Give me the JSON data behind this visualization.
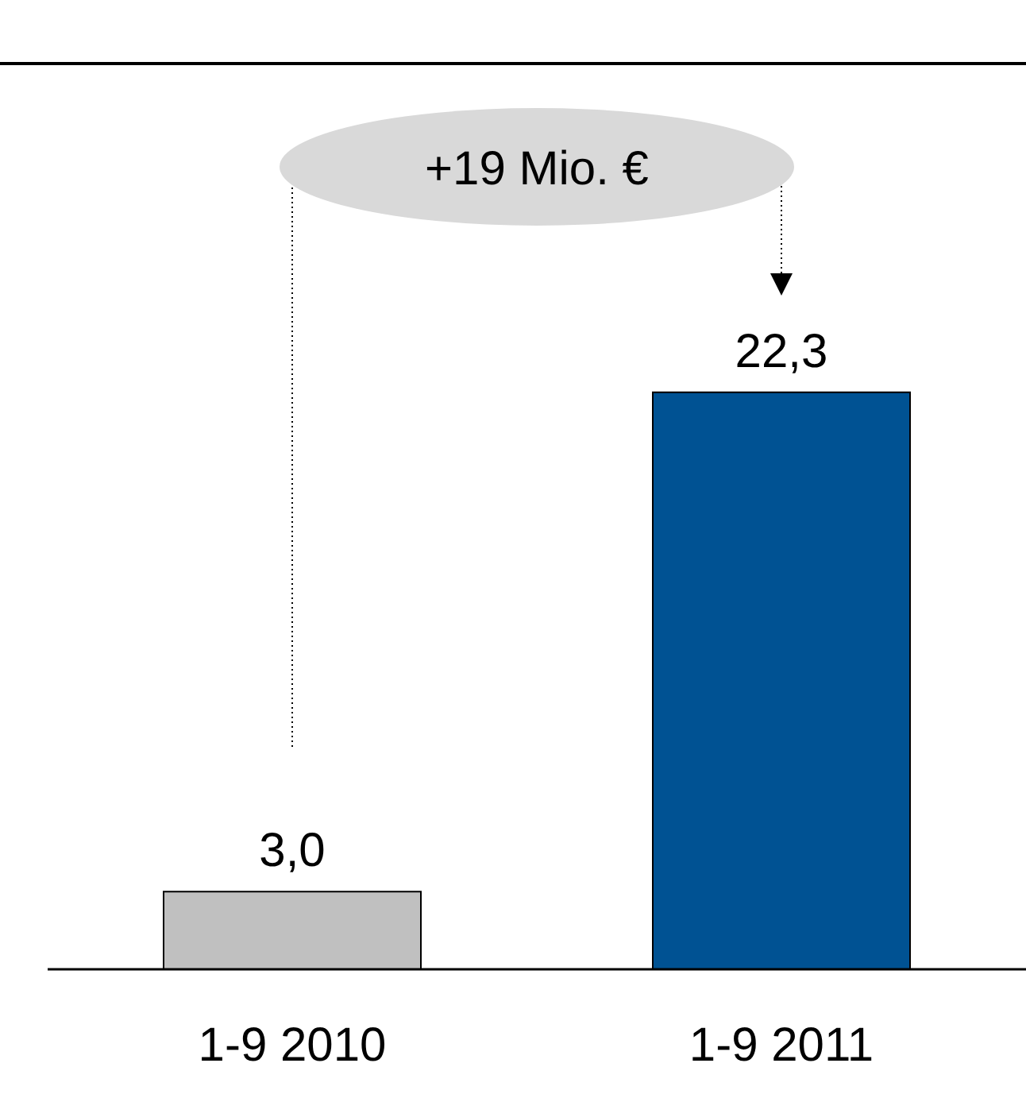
{
  "chart_data": {
    "type": "bar",
    "categories": [
      "1-9 2010",
      "1-9 2011"
    ],
    "values": [
      3.0,
      22.3
    ],
    "colors": [
      "#c0c0c0",
      "#005293"
    ],
    "value_labels": [
      "3,0",
      "22,3"
    ],
    "ylim": [
      0,
      35
    ],
    "annotations": [
      "+19 Mio. €"
    ]
  }
}
